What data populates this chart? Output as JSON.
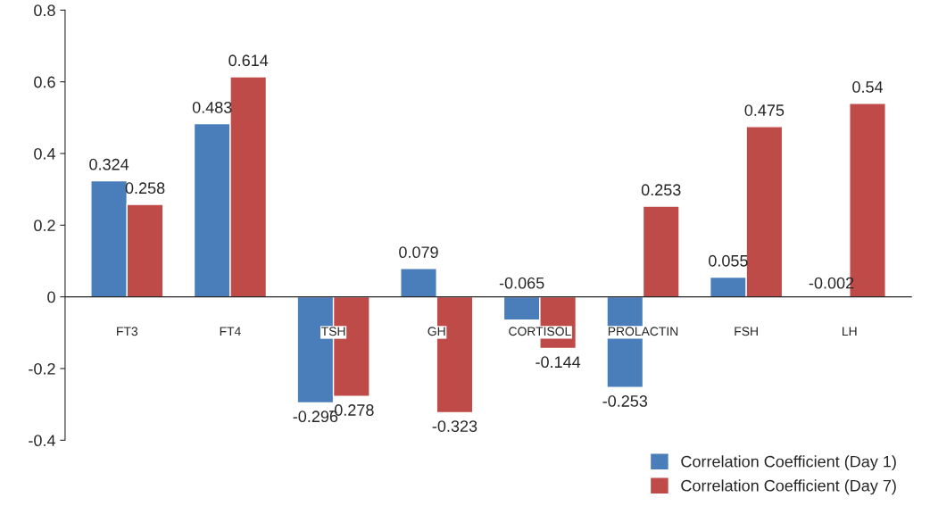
{
  "chart_data": {
    "type": "bar",
    "categories": [
      "FT3",
      "FT4",
      "TSH",
      "GH",
      "CORTISOL",
      "PROLACTIN",
      "FSH",
      "LH"
    ],
    "series": [
      {
        "name": "Correlation Coefficient (Day 1)",
        "color": "#4a7ebb",
        "values": [
          0.324,
          0.483,
          -0.296,
          0.079,
          -0.065,
          -0.253,
          0.055,
          -0.002
        ]
      },
      {
        "name": "Correlation Coefficient (Day 7)",
        "color": "#be4b48",
        "values": [
          0.258,
          0.614,
          -0.278,
          -0.323,
          -0.144,
          0.253,
          0.475,
          0.54
        ]
      }
    ],
    "ylim": [
      -0.4,
      0.8
    ],
    "yticks": [
      -0.4,
      -0.2,
      0,
      0.2,
      0.4,
      0.6,
      0.8
    ],
    "data_labels": true,
    "grid": false,
    "legend": "bottom right"
  }
}
